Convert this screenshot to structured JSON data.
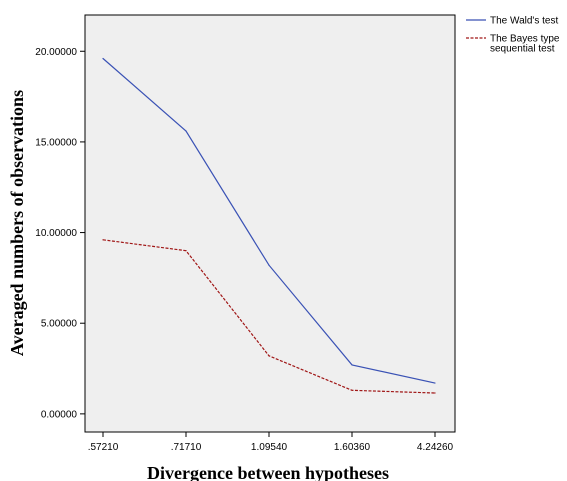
{
  "chart_data": {
    "type": "line",
    "title": "",
    "xlabel": "Divergence between hypotheses",
    "ylabel": "Averaged numbers of observations",
    "categories": [
      ".57210",
      ".71710",
      "1.09540",
      "1.60360",
      "4.24260"
    ],
    "ylim": [
      -1,
      22
    ],
    "yticks": [
      0,
      5,
      10,
      15,
      20
    ],
    "ytick_labels": [
      "0.00000",
      "5.00000",
      "10.00000",
      "15.00000",
      "20.00000"
    ],
    "grid": false,
    "legend_position": "top-right outside",
    "series": [
      {
        "name": "The Wald's test",
        "values": [
          19.6,
          15.6,
          8.2,
          2.7,
          1.7
        ],
        "color": "#3a52b5",
        "dash": "solid"
      },
      {
        "name": "The Bayes type sequential test",
        "legend_lines": [
          "The Bayes type",
          "sequential test"
        ],
        "values": [
          9.6,
          9.0,
          3.2,
          1.3,
          1.15
        ],
        "color": "#a01616",
        "dash": "dashed"
      }
    ],
    "plot_background": "#efefef"
  }
}
